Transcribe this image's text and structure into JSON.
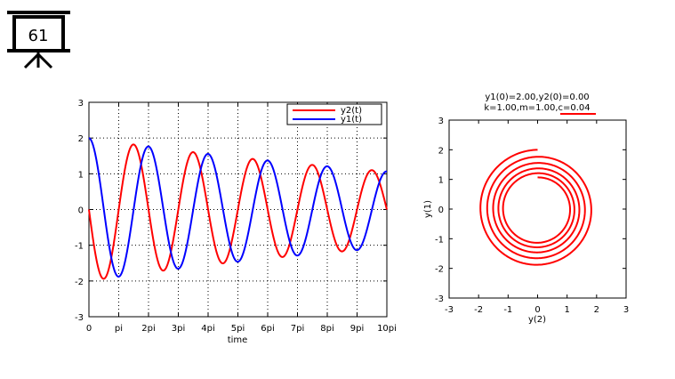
{
  "slide": {
    "number": "61"
  },
  "chart_data": [
    {
      "type": "line",
      "title": "",
      "xlabel": "time",
      "ylabel": "",
      "xlim": [
        0,
        31.416
      ],
      "ylim": [
        -3,
        3
      ],
      "grid": true,
      "legend_position": "top-right",
      "x_ticks": [
        {
          "value": 0,
          "label": "0"
        },
        {
          "value": 3.1416,
          "label": "pi"
        },
        {
          "value": 6.2832,
          "label": "2pi"
        },
        {
          "value": 9.4248,
          "label": "3pi"
        },
        {
          "value": 12.566,
          "label": "4pi"
        },
        {
          "value": 15.708,
          "label": "5pi"
        },
        {
          "value": 18.85,
          "label": "6pi"
        },
        {
          "value": 21.991,
          "label": "7pi"
        },
        {
          "value": 25.133,
          "label": "8pi"
        },
        {
          "value": 28.274,
          "label": "9pi"
        },
        {
          "value": 31.416,
          "label": "10pi"
        }
      ],
      "y_ticks": [
        -3,
        -2,
        -1,
        0,
        1,
        2,
        3
      ],
      "series": [
        {
          "name": "y2(t)",
          "color": "#ff0000",
          "function": "-2*exp(-0.02*t)*sin(t)"
        },
        {
          "name": "y1(t)",
          "color": "#0000ff",
          "function": "2*exp(-0.02*t)*cos(t)"
        }
      ]
    },
    {
      "type": "line",
      "title": "y1(0)=2.00,y2(0)=0.00",
      "subtitle": "k=1.00,m=1.00,c=0.04",
      "xlabel": "y(2)",
      "ylabel": "y(1)",
      "xlim": [
        -3,
        3
      ],
      "ylim": [
        -3,
        3
      ],
      "grid": false,
      "x_ticks": [
        -3,
        -2,
        -1,
        0,
        1,
        2,
        3
      ],
      "y_ticks": [
        -3,
        -2,
        -1,
        0,
        1,
        2,
        3
      ],
      "series": [
        {
          "name": "",
          "color": "#ff0000",
          "x_function": "-2*exp(-0.02*t)*sin(t)",
          "y_function": "2*exp(-0.02*t)*cos(t)",
          "t_range": [
            0,
            31.416
          ]
        }
      ]
    }
  ]
}
